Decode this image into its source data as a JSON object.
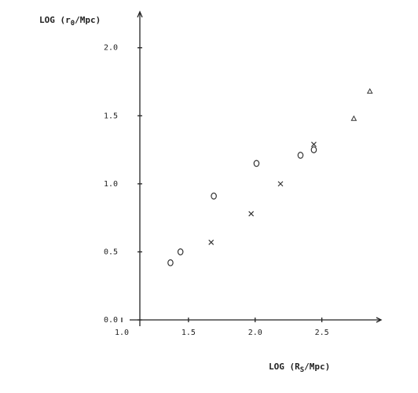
{
  "chart_data": {
    "type": "scatter",
    "y_label": {
      "prefix": "LOG (r",
      "sub": "0",
      "suffix": "/Mpc)"
    },
    "x_label": {
      "prefix": "LOG (R",
      "sub": "S",
      "suffix": "/Mpc)"
    },
    "xlim": [
      1.0,
      2.95
    ],
    "ylim": [
      0,
      2.27
    ],
    "xticks": [
      {
        "value": 1.0,
        "label": "1.0"
      },
      {
        "value": 1.5,
        "label": "1.5"
      },
      {
        "value": 2.0,
        "label": "2.0"
      },
      {
        "value": 2.5,
        "label": "2.5"
      }
    ],
    "yticks": [
      {
        "value": 0,
        "label": "0.0"
      },
      {
        "value": 0.5,
        "label": "0.5"
      },
      {
        "value": 1.0,
        "label": "1.0"
      },
      {
        "value": 1.5,
        "label": "1.5"
      },
      {
        "value": 2.0,
        "label": "2.0"
      }
    ],
    "grid": false,
    "series": [
      {
        "marker": "circle",
        "color": "#333",
        "x": [
          1.365,
          1.44,
          1.69,
          2.01,
          2.34,
          2.44
        ],
        "values": [
          0.42,
          0.5,
          0.91,
          1.15,
          1.21,
          1.25
        ]
      },
      {
        "marker": "cross",
        "color": "#333",
        "x": [
          1.67,
          1.97,
          2.19,
          2.44
        ],
        "values": [
          0.57,
          0.78,
          1.0,
          1.29
        ]
      },
      {
        "marker": "triangle",
        "color": "#333",
        "x": [
          2.74,
          2.86
        ],
        "values": [
          1.48,
          1.68
        ]
      }
    ]
  }
}
